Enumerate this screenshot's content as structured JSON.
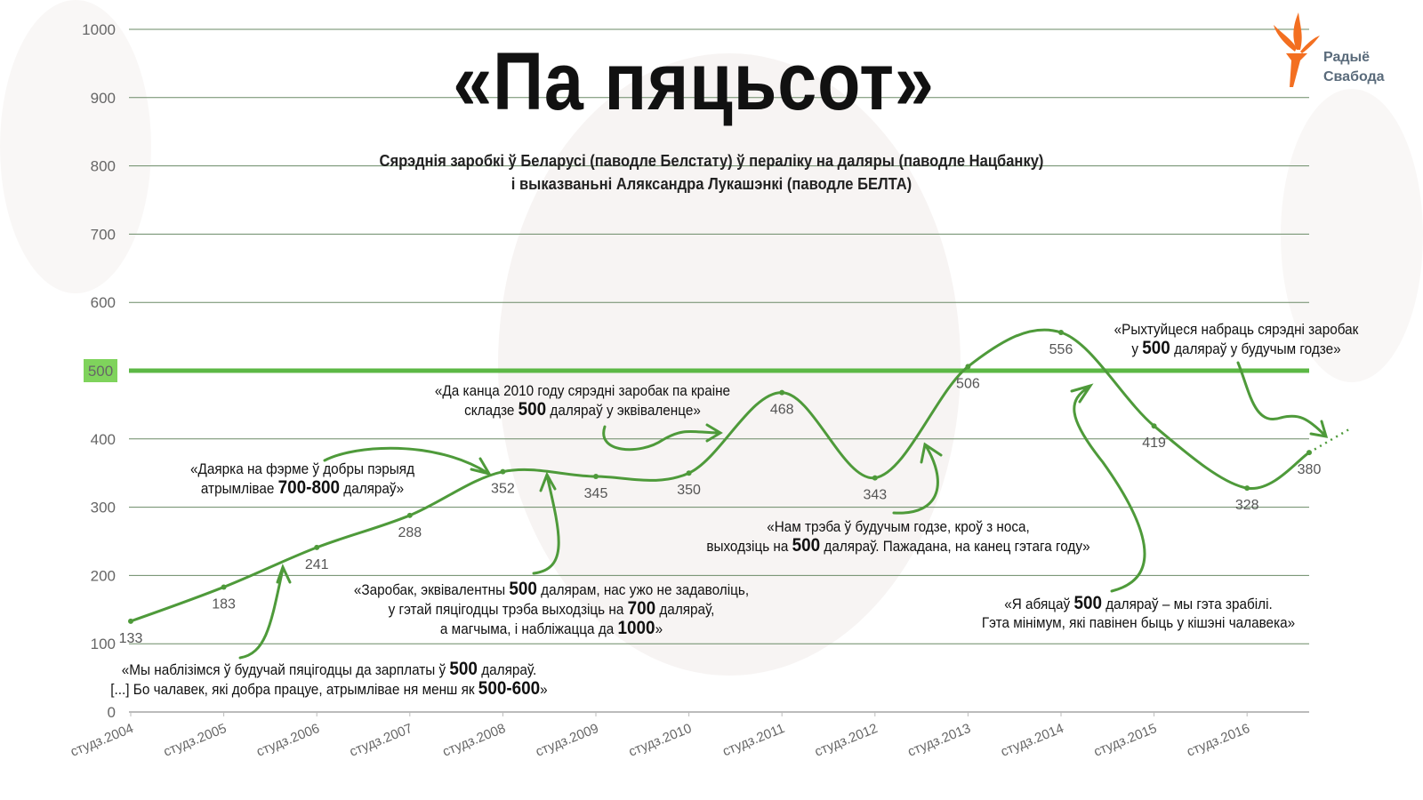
{
  "title": "«Па пяцьсот»",
  "subtitle_lines": [
    "Сярэднія заробкі ў Беларусі (паводле Белстату) ў пераліку на даляры (паводле Нацбанку)",
    "і выказваньні Аляксандра Лукашэнкі (паводле БЕЛТА)"
  ],
  "logo": {
    "line1": "Радыё",
    "line2": "Свабода",
    "color": "#f36f21"
  },
  "colors": {
    "line": "#4e9a3a",
    "highlight_line": "#5cb845",
    "grid": "#6a8a66",
    "text": "#111111"
  },
  "chart_data": {
    "type": "line",
    "categories": [
      "студз.2004",
      "студз.2005",
      "студз.2006",
      "студз.2007",
      "студз.2008",
      "студз.2009",
      "студз.2010",
      "студз.2011",
      "студз.2012",
      "студз.2013",
      "студз.2014",
      "студз.2015",
      "студз.2016"
    ],
    "values": [
      133,
      183,
      241,
      288,
      352,
      345,
      350,
      468,
      343,
      506,
      556,
      419,
      328
    ],
    "latest_value": 380,
    "yticks": [
      0,
      100,
      200,
      300,
      400,
      500,
      600,
      700,
      800,
      900,
      1000
    ],
    "ylim": [
      0,
      1000
    ],
    "highlight_y": 500,
    "grid": true,
    "trend_after_last": "dotted"
  },
  "annotations": [
    {
      "id": "2004",
      "lines": [
        [
          {
            "t": "«Мы наблізімся ў будучай пяцігодцы да зарплаты ў "
          },
          {
            "t": "500",
            "b": true
          },
          {
            "t": " даляраў."
          }
        ],
        [
          {
            "t": "[...] Бо чалавек, які добра працуе, атрымлівае ня менш як "
          },
          {
            "t": "500-600",
            "b": true
          },
          {
            "t": "»"
          }
        ]
      ]
    },
    {
      "id": "farm",
      "lines": [
        [
          {
            "t": "«Даярка на фэрме ў добры пэрыяд"
          }
        ],
        [
          {
            "t": "атрымлівае "
          },
          {
            "t": "700-800",
            "b": true
          },
          {
            "t": " даляраў»"
          }
        ]
      ]
    },
    {
      "id": "1000",
      "lines": [
        [
          {
            "t": "«Заробак, эквівалентны "
          },
          {
            "t": "500",
            "b": true
          },
          {
            "t": " далярам, нас ужо не задаволіць,"
          }
        ],
        [
          {
            "t": "у гэтай пяцігодцы трэба выходзіць на "
          },
          {
            "t": "700",
            "b": true
          },
          {
            "t": " даляраў,"
          }
        ],
        [
          {
            "t": "а магчыма, і набліжацца да "
          },
          {
            "t": "1000",
            "b": true
          },
          {
            "t": "»"
          }
        ]
      ]
    },
    {
      "id": "2010",
      "lines": [
        [
          {
            "t": "«Да канца 2010 году сярэдні заробак па краіне"
          }
        ],
        [
          {
            "t": "складзе "
          },
          {
            "t": "500",
            "b": true
          },
          {
            "t": " даляраў у эквіваленце»"
          }
        ]
      ]
    },
    {
      "id": "nose",
      "lines": [
        [
          {
            "t": "«Нам трэба ў будучым годзе, кроў з носа,"
          }
        ],
        [
          {
            "t": "выходзіць на "
          },
          {
            "t": "500",
            "b": true
          },
          {
            "t": " даляраў. Пажадана, на канец гэтага году»"
          }
        ]
      ]
    },
    {
      "id": "promised",
      "lines": [
        [
          {
            "t": "«Я абяцаў "
          },
          {
            "t": "500",
            "b": true
          },
          {
            "t": " даляраў – мы гэта зрабілі."
          }
        ],
        [
          {
            "t": "Гэта мінімум, які павінен быць у кішэні чалавека»"
          }
        ]
      ]
    },
    {
      "id": "next",
      "lines": [
        [
          {
            "t": "«Рыхтуйцеся набраць сярэдні заробак"
          }
        ],
        [
          {
            "t": "у "
          },
          {
            "t": "500",
            "b": true
          },
          {
            "t": " даляраў у будучым годзе»"
          }
        ]
      ]
    }
  ]
}
